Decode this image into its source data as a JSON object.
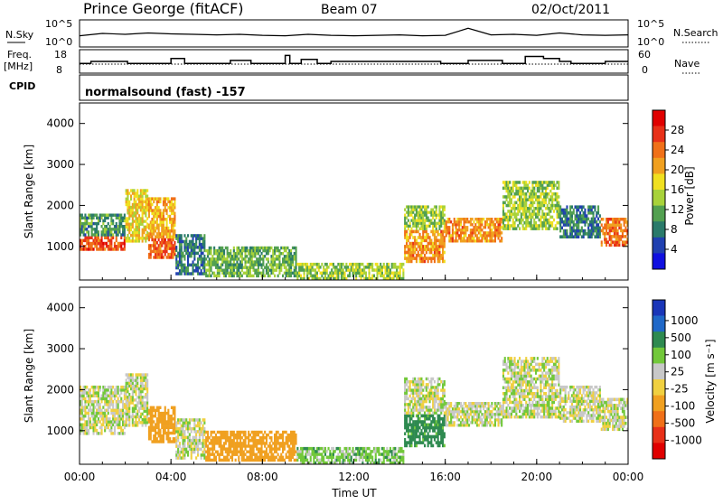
{
  "header": {
    "station": "Prince George (fitACF)",
    "beam": "Beam 07",
    "date": "02/Oct/2011"
  },
  "noise_panel": {
    "left_label": "N.Sky",
    "right_label": "N.Search",
    "left_ticks": [
      "10^5",
      "10^0"
    ],
    "right_ticks": [
      "10^5",
      "10^0"
    ]
  },
  "freq_panel": {
    "left_label_line1": "Freq.",
    "left_label_line2": "[MHz]",
    "right_label": "Nave",
    "left_ticks": [
      "18",
      "8"
    ],
    "right_ticks": [
      "60",
      "0"
    ]
  },
  "cpid_panel": {
    "label": "CPID",
    "text": "normalsound (fast) -157"
  },
  "power_panel": {
    "ylabel": "Slant Range [km]",
    "yticks": [
      "1000",
      "2000",
      "3000",
      "4000"
    ],
    "colorbar_label": "Power [dB]",
    "colorbar_ticks": [
      "4",
      "8",
      "12",
      "16",
      "20",
      "24",
      "28"
    ],
    "colorbar_colors": [
      "#1010e0",
      "#2040b0",
      "#2a7a6a",
      "#52a050",
      "#a8d23a",
      "#f0e020",
      "#f0a020",
      "#f07018",
      "#e83018",
      "#e00000"
    ]
  },
  "velocity_panel": {
    "ylabel": "Slant Range [km]",
    "yticks": [
      "1000",
      "2000",
      "3000",
      "4000"
    ],
    "colorbar_label": "Velocity [m s⁻¹]",
    "colorbar_ticks": [
      "1000",
      "500",
      "100",
      "25",
      "-25",
      "-100",
      "-500",
      "-1000"
    ],
    "colorbar_colors": [
      "#1a36b8",
      "#2068c8",
      "#2e8a50",
      "#72c83a",
      "#c8c8c8",
      "#f0d040",
      "#f0a020",
      "#f07018",
      "#e83018",
      "#e00000"
    ]
  },
  "xaxis": {
    "label": "Time UT",
    "ticks": [
      "00:00",
      "04:00",
      "08:00",
      "12:00",
      "16:00",
      "20:00",
      "00:00"
    ]
  },
  "chart_data": [
    {
      "type": "line",
      "name": "noise",
      "x_hours": [
        0,
        1,
        2,
        3,
        4,
        5,
        6,
        7,
        8,
        9,
        10,
        11,
        12,
        13,
        14,
        15,
        16,
        17,
        18,
        19,
        20,
        21,
        22,
        23,
        24
      ],
      "values_log10": [
        2.0,
        2.5,
        2.3,
        2.6,
        2.4,
        2.3,
        2.2,
        2.3,
        2.1,
        2.0,
        2.3,
        2.1,
        2.0,
        2.1,
        2.2,
        2.0,
        2.1,
        3.6,
        2.2,
        2.3,
        2.1,
        2.6,
        2.2,
        2.1,
        2.2
      ]
    },
    {
      "type": "line",
      "name": "frequency",
      "x_hours": [
        0,
        0.5,
        2.1,
        4.0,
        4.6,
        6.6,
        7.5,
        9.0,
        9.2,
        9.7,
        10.4,
        11.0,
        15.8,
        17.0,
        18.5,
        19.5,
        20.3,
        21.0,
        21.5,
        23.0,
        24
      ],
      "values_mhz": [
        12.0,
        13.0,
        12.0,
        14.5,
        12.0,
        13.5,
        12.0,
        16.0,
        12.0,
        14.0,
        12.0,
        13.0,
        12.0,
        13.5,
        12.0,
        15.5,
        14.5,
        13.0,
        12.0,
        13.0,
        13.0
      ]
    },
    {
      "type": "heatmap",
      "name": "power",
      "xlim_hours": [
        0,
        24
      ],
      "ylim_km": [
        180,
        4500
      ],
      "color_range_db": [
        0,
        32
      ],
      "regions": [
        {
          "t0": 0.0,
          "t1": 2.0,
          "r0": 900,
          "r1": 1250,
          "db": 26
        },
        {
          "t0": 0.0,
          "t1": 2.0,
          "r0": 1250,
          "r1": 1800,
          "db": 10
        },
        {
          "t0": 2.0,
          "t1": 3.0,
          "r0": 1100,
          "r1": 2400,
          "db": 18
        },
        {
          "t0": 3.0,
          "t1": 4.2,
          "r0": 700,
          "r1": 1200,
          "db": 25
        },
        {
          "t0": 3.0,
          "t1": 4.2,
          "r0": 1200,
          "r1": 2200,
          "db": 20
        },
        {
          "t0": 4.2,
          "t1": 5.5,
          "r0": 300,
          "r1": 1300,
          "db": 8
        },
        {
          "t0": 5.5,
          "t1": 9.5,
          "r0": 250,
          "r1": 1000,
          "db": 12
        },
        {
          "t0": 9.5,
          "t1": 14.2,
          "r0": 180,
          "r1": 600,
          "db": 14
        },
        {
          "t0": 14.2,
          "t1": 16.0,
          "r0": 600,
          "r1": 1400,
          "db": 22
        },
        {
          "t0": 14.2,
          "t1": 16.0,
          "r0": 1400,
          "r1": 2000,
          "db": 14
        },
        {
          "t0": 16.0,
          "t1": 18.5,
          "r0": 1100,
          "r1": 1700,
          "db": 22
        },
        {
          "t0": 18.5,
          "t1": 21.0,
          "r0": 1400,
          "r1": 2600,
          "db": 14
        },
        {
          "t0": 21.0,
          "t1": 22.8,
          "r0": 1200,
          "r1": 2000,
          "db": 8
        },
        {
          "t0": 22.8,
          "t1": 24.0,
          "r0": 1000,
          "r1": 1700,
          "db": 24
        }
      ]
    },
    {
      "type": "heatmap",
      "name": "velocity",
      "xlim_hours": [
        0,
        24
      ],
      "ylim_km": [
        180,
        4500
      ],
      "color_range_ms": [
        -1000,
        1000
      ],
      "regions": [
        {
          "t0": 0.0,
          "t1": 2.0,
          "r0": 900,
          "r1": 2100,
          "v": 0
        },
        {
          "t0": 2.0,
          "t1": 3.0,
          "r0": 1100,
          "r1": 2400,
          "v": 0
        },
        {
          "t0": 3.0,
          "t1": 4.2,
          "r0": 700,
          "r1": 1600,
          "v": -300
        },
        {
          "t0": 4.2,
          "t1": 5.5,
          "r0": 300,
          "r1": 1300,
          "v": 0
        },
        {
          "t0": 5.5,
          "t1": 9.5,
          "r0": 250,
          "r1": 1000,
          "v": -200
        },
        {
          "t0": 9.5,
          "t1": 14.2,
          "r0": 180,
          "r1": 600,
          "v": 60
        },
        {
          "t0": 14.2,
          "t1": 16.0,
          "r0": 600,
          "r1": 1400,
          "v": 150
        },
        {
          "t0": 14.2,
          "t1": 16.0,
          "r0": 1400,
          "r1": 2300,
          "v": 0
        },
        {
          "t0": 16.0,
          "t1": 18.5,
          "r0": 1100,
          "r1": 1700,
          "v": 0
        },
        {
          "t0": 18.5,
          "t1": 21.0,
          "r0": 1300,
          "r1": 2800,
          "v": 0
        },
        {
          "t0": 21.0,
          "t1": 22.8,
          "r0": 1200,
          "r1": 2100,
          "v": 0
        },
        {
          "t0": 22.8,
          "t1": 24.0,
          "r0": 1000,
          "r1": 1800,
          "v": 0
        }
      ]
    }
  ]
}
